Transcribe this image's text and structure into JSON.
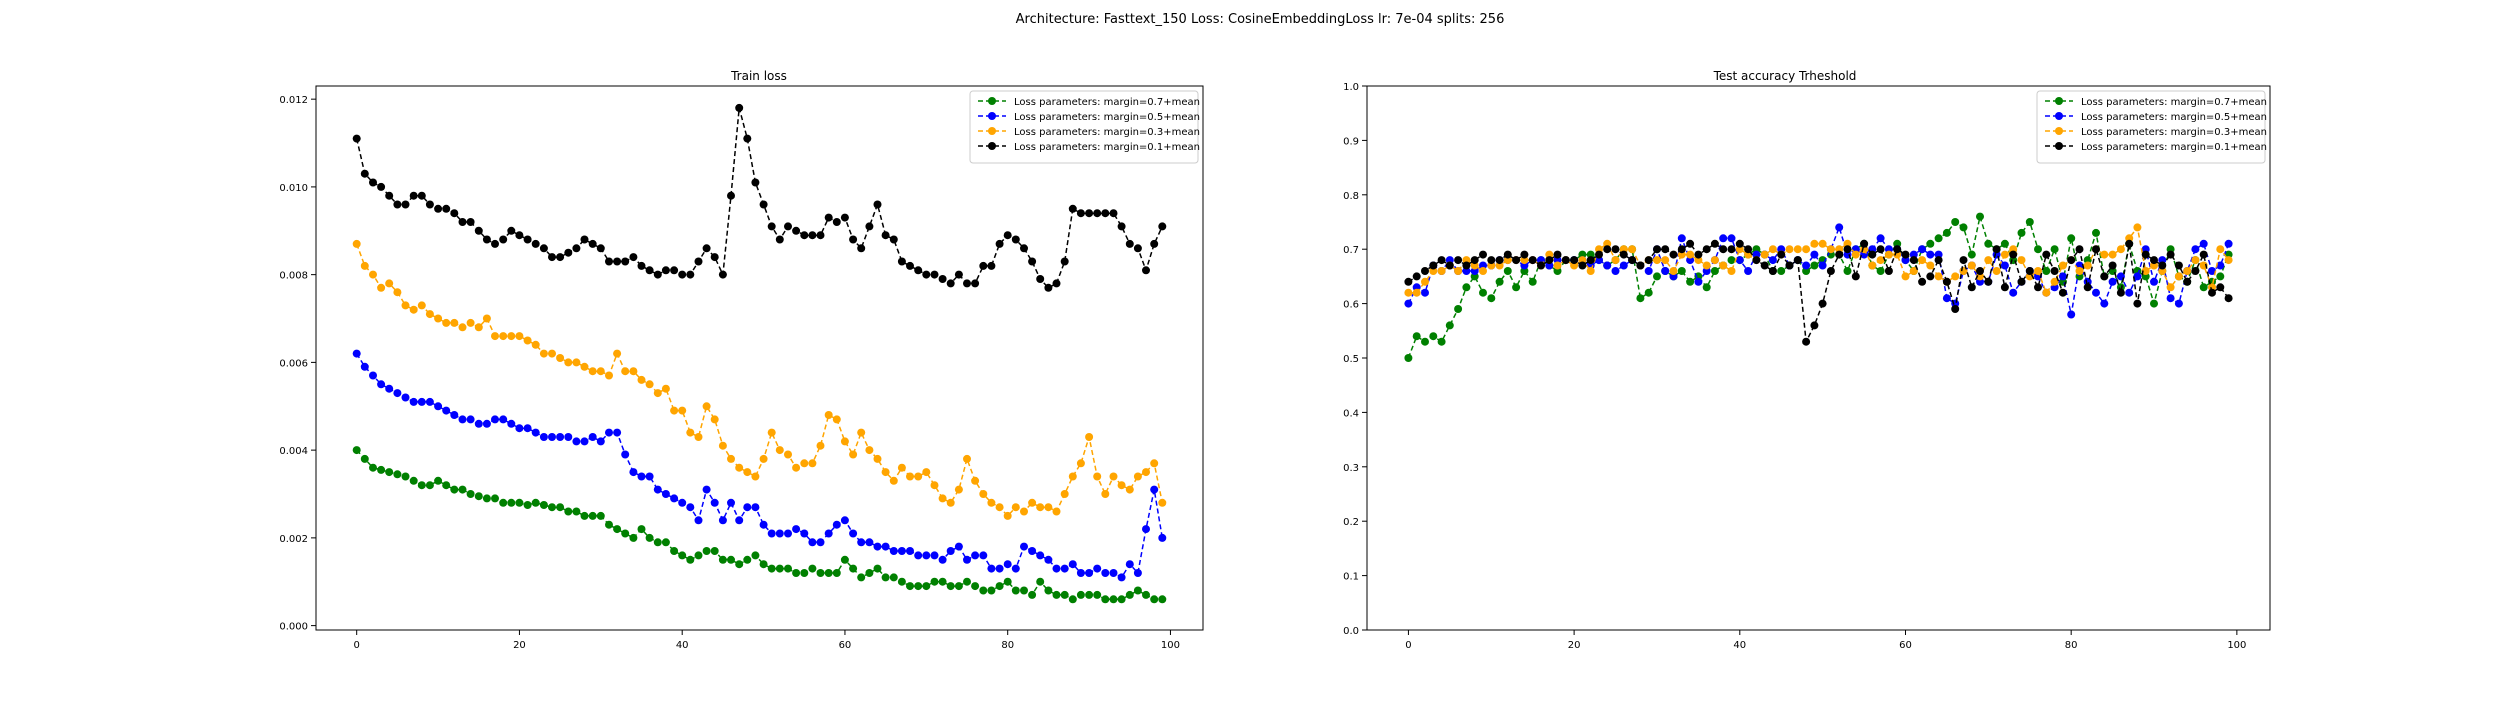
{
  "figure": {
    "suptitle": "Architecture: Fasttext_150 Loss: CosineEmbeddingLoss lr: 7e-04 splits: 256"
  },
  "chart_data": [
    {
      "type": "line",
      "title": "Train loss",
      "xlabel": "",
      "ylabel": "",
      "xlim": [
        -5,
        104
      ],
      "ylim": [
        -0.0001,
        0.0123
      ],
      "xticks": [
        0,
        20,
        40,
        60,
        80,
        100
      ],
      "yticks": [
        0.0,
        0.002,
        0.004,
        0.006,
        0.008,
        0.01,
        0.012
      ],
      "ytick_format": 3,
      "legend_position": "top-right",
      "grid": false,
      "series": [
        {
          "name": "Loss parameters: margin=0.7+mean",
          "color": "#008000",
          "values": [
            0.004,
            0.0038,
            0.0036,
            0.00355,
            0.0035,
            0.00345,
            0.0034,
            0.0033,
            0.0032,
            0.0032,
            0.0033,
            0.0032,
            0.0031,
            0.0031,
            0.003,
            0.00295,
            0.0029,
            0.0029,
            0.0028,
            0.0028,
            0.0028,
            0.00275,
            0.0028,
            0.00275,
            0.0027,
            0.0027,
            0.0026,
            0.0026,
            0.0025,
            0.0025,
            0.0025,
            0.0023,
            0.0022,
            0.0021,
            0.002,
            0.0022,
            0.002,
            0.0019,
            0.0019,
            0.0017,
            0.0016,
            0.0015,
            0.0016,
            0.0017,
            0.0017,
            0.0015,
            0.0015,
            0.0014,
            0.0015,
            0.0016,
            0.0014,
            0.0013,
            0.0013,
            0.0013,
            0.0012,
            0.0012,
            0.0013,
            0.0012,
            0.0012,
            0.0012,
            0.0015,
            0.0013,
            0.0011,
            0.0012,
            0.0013,
            0.0011,
            0.0011,
            0.001,
            0.0009,
            0.0009,
            0.0009,
            0.001,
            0.001,
            0.0009,
            0.0009,
            0.001,
            0.0009,
            0.0008,
            0.0008,
            0.0009,
            0.001,
            0.0008,
            0.0008,
            0.0007,
            0.001,
            0.0008,
            0.0007,
            0.0007,
            0.0006,
            0.0007,
            0.0007,
            0.0007,
            0.0006,
            0.0006,
            0.0006,
            0.0007,
            0.0008,
            0.0007,
            0.0006,
            0.0006
          ]
        },
        {
          "name": "Loss parameters: margin=0.5+mean",
          "color": "#0000ff",
          "values": [
            0.0062,
            0.0059,
            0.0057,
            0.0055,
            0.0054,
            0.0053,
            0.0052,
            0.0051,
            0.0051,
            0.0051,
            0.005,
            0.0049,
            0.0048,
            0.0047,
            0.0047,
            0.0046,
            0.0046,
            0.0047,
            0.0047,
            0.0046,
            0.0045,
            0.0045,
            0.0044,
            0.0043,
            0.0043,
            0.0043,
            0.0043,
            0.0042,
            0.0042,
            0.0043,
            0.0042,
            0.0044,
            0.0044,
            0.0039,
            0.0035,
            0.0034,
            0.0034,
            0.0031,
            0.003,
            0.0029,
            0.0028,
            0.0027,
            0.0024,
            0.0031,
            0.0028,
            0.0024,
            0.0028,
            0.0024,
            0.0027,
            0.0027,
            0.0023,
            0.0021,
            0.0021,
            0.0021,
            0.0022,
            0.0021,
            0.0019,
            0.0019,
            0.0021,
            0.0023,
            0.0024,
            0.0021,
            0.0019,
            0.0019,
            0.0018,
            0.0018,
            0.0017,
            0.0017,
            0.0017,
            0.0016,
            0.0016,
            0.0016,
            0.0015,
            0.0017,
            0.0018,
            0.0015,
            0.0016,
            0.0016,
            0.0013,
            0.0013,
            0.0014,
            0.0013,
            0.0018,
            0.0017,
            0.0016,
            0.0015,
            0.0013,
            0.0013,
            0.0014,
            0.0012,
            0.0012,
            0.0013,
            0.0012,
            0.0012,
            0.0011,
            0.0014,
            0.0012,
            0.0022,
            0.0031,
            0.002
          ]
        },
        {
          "name": "Loss parameters: margin=0.3+mean",
          "color": "#ffa500",
          "values": [
            0.0087,
            0.0082,
            0.008,
            0.0077,
            0.0078,
            0.0076,
            0.0073,
            0.0072,
            0.0073,
            0.0071,
            0.007,
            0.0069,
            0.0069,
            0.0068,
            0.0069,
            0.0068,
            0.007,
            0.0066,
            0.0066,
            0.0066,
            0.0066,
            0.0065,
            0.0064,
            0.0062,
            0.0062,
            0.0061,
            0.006,
            0.006,
            0.0059,
            0.0058,
            0.0058,
            0.0057,
            0.0062,
            0.0058,
            0.0058,
            0.0056,
            0.0055,
            0.0053,
            0.0054,
            0.0049,
            0.0049,
            0.0044,
            0.0043,
            0.005,
            0.0047,
            0.0041,
            0.0038,
            0.0036,
            0.0035,
            0.0034,
            0.0038,
            0.0044,
            0.004,
            0.0039,
            0.0036,
            0.0037,
            0.0037,
            0.0041,
            0.0048,
            0.0047,
            0.0042,
            0.0039,
            0.0044,
            0.004,
            0.0038,
            0.0035,
            0.0033,
            0.0036,
            0.0034,
            0.0034,
            0.0035,
            0.0032,
            0.0029,
            0.0028,
            0.0031,
            0.0038,
            0.0033,
            0.003,
            0.0028,
            0.0027,
            0.0025,
            0.0027,
            0.0026,
            0.0028,
            0.0027,
            0.0027,
            0.0026,
            0.003,
            0.0034,
            0.0037,
            0.0043,
            0.0034,
            0.003,
            0.0034,
            0.0032,
            0.0031,
            0.0034,
            0.0035,
            0.0037,
            0.0028
          ]
        },
        {
          "name": "Loss parameters: margin=0.1+mean",
          "color": "#000000",
          "values": [
            0.0111,
            0.0103,
            0.0101,
            0.01,
            0.0098,
            0.0096,
            0.0096,
            0.0098,
            0.0098,
            0.0096,
            0.0095,
            0.0095,
            0.0094,
            0.0092,
            0.0092,
            0.009,
            0.0088,
            0.0087,
            0.0088,
            0.009,
            0.0089,
            0.0088,
            0.0087,
            0.0086,
            0.0084,
            0.0084,
            0.0085,
            0.0086,
            0.0088,
            0.0087,
            0.0086,
            0.0083,
            0.0083,
            0.0083,
            0.0084,
            0.0082,
            0.0081,
            0.008,
            0.0081,
            0.0081,
            0.008,
            0.008,
            0.0083,
            0.0086,
            0.0084,
            0.008,
            0.0098,
            0.0118,
            0.0111,
            0.0101,
            0.0096,
            0.0091,
            0.0088,
            0.0091,
            0.009,
            0.0089,
            0.0089,
            0.0089,
            0.0093,
            0.0092,
            0.0093,
            0.0088,
            0.0086,
            0.0091,
            0.0096,
            0.0089,
            0.0088,
            0.0083,
            0.0082,
            0.0081,
            0.008,
            0.008,
            0.0079,
            0.0078,
            0.008,
            0.0078,
            0.0078,
            0.0082,
            0.0082,
            0.0087,
            0.0089,
            0.0088,
            0.0086,
            0.0083,
            0.0079,
            0.0077,
            0.0078,
            0.0083,
            0.0095,
            0.0094,
            0.0094,
            0.0094,
            0.0094,
            0.0094,
            0.0091,
            0.0087,
            0.0086,
            0.0081,
            0.0087,
            0.0091
          ]
        }
      ]
    },
    {
      "type": "line",
      "title": "Test accuracy Trheshold",
      "xlabel": "",
      "ylabel": "",
      "xlim": [
        -5,
        104
      ],
      "ylim": [
        0.0,
        1.0
      ],
      "xticks": [
        0,
        20,
        40,
        60,
        80,
        100
      ],
      "yticks": [
        0.0,
        0.1,
        0.2,
        0.3,
        0.4,
        0.5,
        0.6,
        0.7,
        0.8,
        0.9,
        1.0
      ],
      "ytick_format": 1,
      "legend_position": "top-right",
      "grid": false,
      "series": [
        {
          "name": "Loss parameters: margin=0.7+mean",
          "color": "#008000",
          "values": [
            0.5,
            0.54,
            0.53,
            0.54,
            0.53,
            0.56,
            0.59,
            0.63,
            0.65,
            0.62,
            0.61,
            0.64,
            0.66,
            0.63,
            0.66,
            0.64,
            0.68,
            0.67,
            0.66,
            0.68,
            0.68,
            0.69,
            0.69,
            0.68,
            0.67,
            0.68,
            0.7,
            0.7,
            0.61,
            0.62,
            0.65,
            0.66,
            0.65,
            0.66,
            0.64,
            0.65,
            0.63,
            0.66,
            0.67,
            0.68,
            0.68,
            0.69,
            0.7,
            0.69,
            0.66,
            0.66,
            0.67,
            0.68,
            0.66,
            0.67,
            0.68,
            0.69,
            0.69,
            0.66,
            0.7,
            0.71,
            0.67,
            0.66,
            0.69,
            0.71,
            0.68,
            0.66,
            0.7,
            0.71,
            0.72,
            0.73,
            0.75,
            0.74,
            0.69,
            0.76,
            0.71,
            0.7,
            0.71,
            0.68,
            0.73,
            0.75,
            0.7,
            0.66,
            0.7,
            0.64,
            0.72,
            0.65,
            0.68,
            0.73,
            0.65,
            0.66,
            0.63,
            0.71,
            0.66,
            0.65,
            0.6,
            0.66,
            0.7,
            0.65,
            0.64,
            0.68,
            0.63,
            0.64,
            0.65,
            0.69
          ]
        },
        {
          "name": "Loss parameters: margin=0.5+mean",
          "color": "#0000ff",
          "values": [
            0.6,
            0.63,
            0.62,
            0.67,
            0.66,
            0.68,
            0.66,
            0.66,
            0.66,
            0.67,
            0.67,
            0.68,
            0.68,
            0.68,
            0.67,
            0.68,
            0.68,
            0.67,
            0.68,
            0.68,
            0.68,
            0.68,
            0.67,
            0.68,
            0.67,
            0.66,
            0.67,
            0.68,
            0.67,
            0.66,
            0.7,
            0.66,
            0.65,
            0.72,
            0.68,
            0.64,
            0.66,
            0.68,
            0.72,
            0.72,
            0.68,
            0.66,
            0.69,
            0.69,
            0.68,
            0.7,
            0.67,
            0.68,
            0.67,
            0.69,
            0.67,
            0.7,
            0.74,
            0.69,
            0.7,
            0.69,
            0.7,
            0.72,
            0.7,
            0.7,
            0.68,
            0.69,
            0.7,
            0.69,
            0.69,
            0.61,
            0.6,
            0.66,
            0.67,
            0.64,
            0.64,
            0.69,
            0.67,
            0.62,
            0.64,
            0.66,
            0.65,
            0.62,
            0.63,
            0.65,
            0.58,
            0.67,
            0.64,
            0.62,
            0.6,
            0.64,
            0.65,
            0.62,
            0.65,
            0.7,
            0.64,
            0.68,
            0.61,
            0.6,
            0.66,
            0.7,
            0.71,
            0.66,
            0.67,
            0.71
          ]
        },
        {
          "name": "Loss parameters: margin=0.3+mean",
          "color": "#ffa500",
          "values": [
            0.62,
            0.62,
            0.64,
            0.66,
            0.66,
            0.67,
            0.66,
            0.68,
            0.67,
            0.66,
            0.67,
            0.67,
            0.68,
            0.68,
            0.68,
            0.68,
            0.67,
            0.69,
            0.67,
            0.68,
            0.67,
            0.68,
            0.66,
            0.7,
            0.71,
            0.68,
            0.7,
            0.7,
            0.67,
            0.68,
            0.68,
            0.68,
            0.66,
            0.69,
            0.69,
            0.68,
            0.67,
            0.68,
            0.67,
            0.66,
            0.7,
            0.69,
            0.68,
            0.69,
            0.7,
            0.69,
            0.7,
            0.7,
            0.7,
            0.71,
            0.71,
            0.7,
            0.7,
            0.71,
            0.69,
            0.7,
            0.67,
            0.68,
            0.69,
            0.69,
            0.65,
            0.66,
            0.68,
            0.67,
            0.65,
            0.64,
            0.65,
            0.66,
            0.67,
            0.65,
            0.68,
            0.66,
            0.69,
            0.7,
            0.68,
            0.65,
            0.66,
            0.62,
            0.64,
            0.67,
            0.68,
            0.66,
            0.67,
            0.7,
            0.69,
            0.69,
            0.7,
            0.72,
            0.74,
            0.66,
            0.67,
            0.66,
            0.63,
            0.65,
            0.66,
            0.68,
            0.67,
            0.63,
            0.7,
            0.68
          ]
        },
        {
          "name": "Loss parameters: margin=0.1+mean",
          "color": "#000000",
          "values": [
            0.64,
            0.65,
            0.66,
            0.67,
            0.68,
            0.67,
            0.68,
            0.67,
            0.68,
            0.69,
            0.68,
            0.68,
            0.69,
            0.68,
            0.69,
            0.68,
            0.67,
            0.68,
            0.69,
            0.68,
            0.68,
            0.67,
            0.68,
            0.69,
            0.7,
            0.7,
            0.69,
            0.68,
            0.67,
            0.68,
            0.7,
            0.7,
            0.69,
            0.7,
            0.71,
            0.69,
            0.7,
            0.71,
            0.7,
            0.7,
            0.71,
            0.7,
            0.68,
            0.67,
            0.66,
            0.69,
            0.67,
            0.68,
            0.53,
            0.56,
            0.6,
            0.66,
            0.69,
            0.7,
            0.65,
            0.71,
            0.69,
            0.7,
            0.66,
            0.7,
            0.69,
            0.68,
            0.64,
            0.65,
            0.68,
            0.64,
            0.59,
            0.68,
            0.63,
            0.66,
            0.64,
            0.7,
            0.63,
            0.69,
            0.64,
            0.66,
            0.63,
            0.69,
            0.66,
            0.62,
            0.68,
            0.7,
            0.63,
            0.7,
            0.65,
            0.67,
            0.62,
            0.71,
            0.6,
            0.69,
            0.68,
            0.67,
            0.69,
            0.67,
            0.64,
            0.66,
            0.69,
            0.62,
            0.63,
            0.61
          ]
        }
      ]
    }
  ]
}
